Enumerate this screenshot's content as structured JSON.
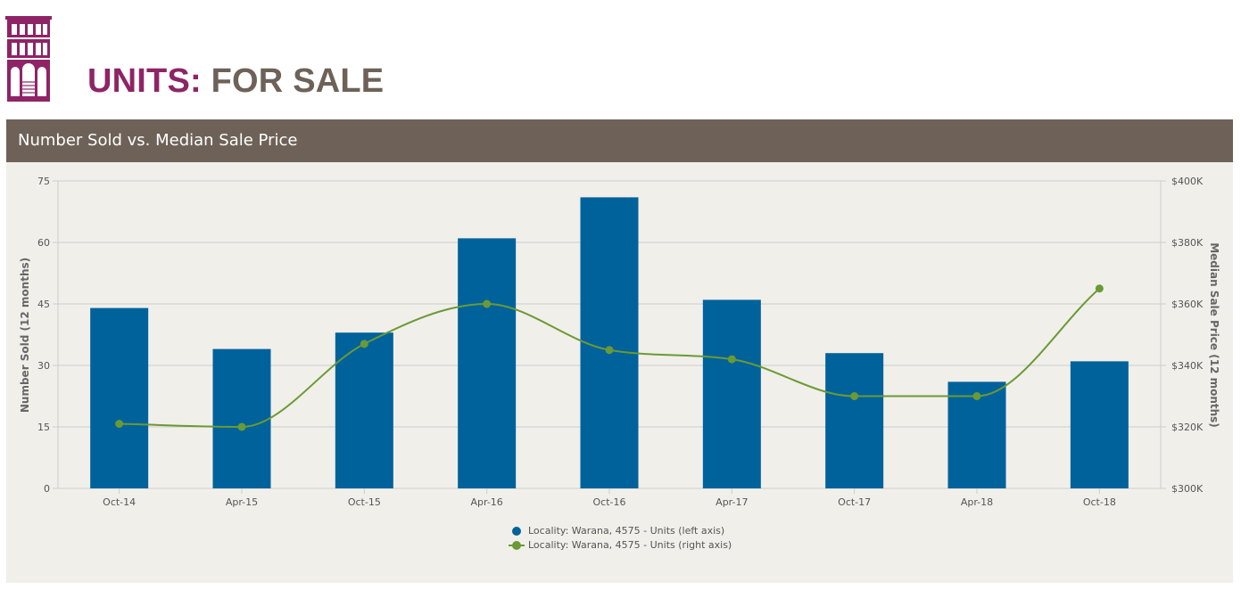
{
  "header": {
    "title_part1": "UNITS:",
    "title_part2": "FOR SALE",
    "logo_icon": "building-icon",
    "colors": {
      "brand": "#8e2466",
      "secondary": "#6e6258"
    }
  },
  "panel": {
    "title": "Number Sold vs. Median Sale Price"
  },
  "chart_data": {
    "type": "bar",
    "categories": [
      "Oct-14",
      "Apr-15",
      "Oct-15",
      "Apr-16",
      "Oct-16",
      "Apr-17",
      "Oct-17",
      "Apr-18",
      "Oct-18"
    ],
    "series": [
      {
        "name": "Locality: Warana, 4575 - Units (left axis)",
        "type": "bar",
        "axis": "left",
        "color": "#00629b",
        "values": [
          44,
          34,
          38,
          61,
          71,
          46,
          33,
          26,
          31
        ]
      },
      {
        "name": "Locality: Warana, 4575 - Units (right axis)",
        "type": "line",
        "axis": "right",
        "color": "#6a9a35",
        "values": [
          321000,
          320000,
          347000,
          360000,
          345000,
          342000,
          330000,
          330000,
          365000
        ]
      }
    ],
    "ylabel": "Number Sold (12 months)",
    "ylabel_right": "Median Sale Price (12 months)",
    "ylim": [
      0,
      75
    ],
    "ylim_right": [
      300000,
      400000
    ],
    "yticks": [
      "0",
      "15",
      "30",
      "45",
      "60",
      "75"
    ],
    "yticks_right": [
      "$300K",
      "$320K",
      "$340K",
      "$360K",
      "$380K",
      "$400K"
    ],
    "grid": true,
    "legend": "bottom-center"
  }
}
